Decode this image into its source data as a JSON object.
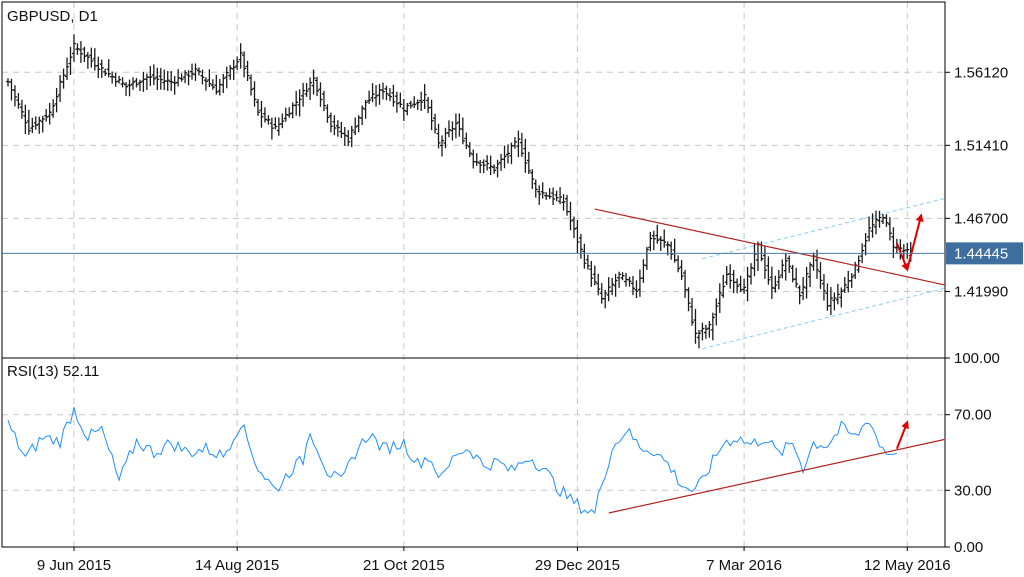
{
  "chart_data": [
    {
      "type": "ohlc",
      "title": "GBPUSD, D1",
      "price_ticks": [
        1.5612,
        1.5141,
        1.467,
        1.4199
      ],
      "price_tick_labels": [
        "1.56120",
        "1.51410",
        "1.46700",
        "1.41990"
      ],
      "ylim": [
        1.377,
        1.6065
      ],
      "current_price": 1.44445,
      "current_price_label": "1.44445",
      "date_labels": [
        "9 Jun 2015",
        "14 Aug 2015",
        "21 Oct 2015",
        "29 Dec 2015",
        "7 Mar 2016",
        "12 May 2016"
      ],
      "date_label_bars": [
        19,
        66,
        114,
        164,
        212,
        259
      ],
      "bars_total": 270,
      "anchors": [
        [
          0,
          1.555
        ],
        [
          6,
          1.525
        ],
        [
          12,
          1.535
        ],
        [
          19,
          1.578
        ],
        [
          26,
          1.565
        ],
        [
          34,
          1.552
        ],
        [
          40,
          1.558
        ],
        [
          47,
          1.555
        ],
        [
          54,
          1.562
        ],
        [
          60,
          1.55
        ],
        [
          67,
          1.572
        ],
        [
          72,
          1.535
        ],
        [
          77,
          1.525
        ],
        [
          84,
          1.545
        ],
        [
          88,
          1.557
        ],
        [
          93,
          1.528
        ],
        [
          98,
          1.518
        ],
        [
          103,
          1.542
        ],
        [
          108,
          1.55
        ],
        [
          114,
          1.538
        ],
        [
          120,
          1.545
        ],
        [
          124,
          1.515
        ],
        [
          129,
          1.528
        ],
        [
          134,
          1.505
        ],
        [
          140,
          1.499
        ],
        [
          147,
          1.517
        ],
        [
          152,
          1.485
        ],
        [
          160,
          1.478
        ],
        [
          166,
          1.44
        ],
        [
          171,
          1.415
        ],
        [
          176,
          1.43
        ],
        [
          181,
          1.421
        ],
        [
          185,
          1.455
        ],
        [
          190,
          1.45
        ],
        [
          194,
          1.43
        ],
        [
          198,
          1.392
        ],
        [
          202,
          1.397
        ],
        [
          207,
          1.431
        ],
        [
          212,
          1.421
        ],
        [
          216,
          1.449
        ],
        [
          220,
          1.421
        ],
        [
          224,
          1.44
        ],
        [
          228,
          1.418
        ],
        [
          232,
          1.441
        ],
        [
          236,
          1.412
        ],
        [
          240,
          1.42
        ],
        [
          244,
          1.435
        ],
        [
          248,
          1.46
        ],
        [
          252,
          1.469
        ],
        [
          255,
          1.45
        ],
        [
          259,
          1.445
        ],
        [
          260,
          1.44445
        ]
      ],
      "annotations": [
        {
          "type": "trendline",
          "color": "#b22222",
          "from": [
            169,
            1.473
          ],
          "to": [
            270,
            1.424
          ]
        },
        {
          "type": "channel_line",
          "color": "#87cefa",
          "from": [
            200,
            1.383
          ],
          "to": [
            270,
            1.422
          ]
        },
        {
          "type": "channel_line",
          "color": "#87cefa",
          "from": [
            200,
            1.441
          ],
          "to": [
            270,
            1.48
          ]
        },
        {
          "type": "arrow",
          "color": "#e00000",
          "from": [
            256,
            1.451
          ],
          "to": [
            259,
            1.434
          ]
        },
        {
          "type": "arrow",
          "color": "#e00000",
          "from": [
            259,
            1.434
          ],
          "to": [
            263,
            1.469
          ]
        }
      ]
    },
    {
      "type": "line",
      "title": "RSI(13) 52.11",
      "ylim": [
        0,
        100
      ],
      "y_ticks": [
        100,
        70,
        30,
        0
      ],
      "y_tick_labels": [
        "100.00",
        "70.00",
        "30.00",
        "0.00"
      ],
      "series": [
        {
          "color": "#1e90ff",
          "anchors": [
            [
              0,
              65
            ],
            [
              5,
              47
            ],
            [
              10,
              58
            ],
            [
              15,
              56
            ],
            [
              19,
              73
            ],
            [
              23,
              58
            ],
            [
              27,
              62
            ],
            [
              32,
              35
            ],
            [
              37,
              56
            ],
            [
              42,
              50
            ],
            [
              47,
              55
            ],
            [
              52,
              50
            ],
            [
              57,
              52
            ],
            [
              62,
              48
            ],
            [
              67,
              66
            ],
            [
              72,
              42
            ],
            [
              77,
              30
            ],
            [
              82,
              42
            ],
            [
              85,
              46
            ],
            [
              87,
              62
            ],
            [
              92,
              40
            ],
            [
              96,
              34
            ],
            [
              100,
              50
            ],
            [
              104,
              60
            ],
            [
              108,
              52
            ],
            [
              114,
              55
            ],
            [
              118,
              44
            ],
            [
              121,
              48
            ],
            [
              125,
              36
            ],
            [
              129,
              50
            ],
            [
              133,
              52
            ],
            [
              137,
              43
            ],
            [
              141,
              45
            ],
            [
              145,
              40
            ],
            [
              150,
              48
            ],
            [
              154,
              42
            ],
            [
              158,
              32
            ],
            [
              162,
              25
            ],
            [
              166,
              20
            ],
            [
              169,
              18
            ],
            [
              171,
              34
            ],
            [
              174,
              52
            ],
            [
              178,
              62
            ],
            [
              182,
              53
            ],
            [
              186,
              51
            ],
            [
              190,
              44
            ],
            [
              194,
              33
            ],
            [
              198,
              29
            ],
            [
              202,
              42
            ],
            [
              206,
              55
            ],
            [
              210,
              58
            ],
            [
              214,
              54
            ],
            [
              218,
              58
            ],
            [
              222,
              49
            ],
            [
              226,
              55
            ],
            [
              229,
              42
            ],
            [
              232,
              55
            ],
            [
              236,
              54
            ],
            [
              240,
              63
            ],
            [
              244,
              58
            ],
            [
              248,
              68
            ],
            [
              251,
              54
            ],
            [
              254,
              49
            ],
            [
              256,
              52.11
            ]
          ]
        }
      ],
      "annotations": [
        {
          "type": "trendline",
          "color": "#b22222",
          "from": [
            173,
            18
          ],
          "to": [
            270,
            57
          ]
        },
        {
          "type": "arrow",
          "color": "#e00000",
          "from": [
            256,
            52
          ],
          "to": [
            259,
            66
          ]
        }
      ]
    }
  ],
  "colors": {
    "background": "#ffffff",
    "bars": "#1a1a1a",
    "grid": "#c8c8c8",
    "current_price_line": "#4a7aa8",
    "current_price_label_bg": "#3e6e9e",
    "current_price_label_text": "#ffffff",
    "rsi": "#1e90ff",
    "trendline": "#b22222",
    "channel": "#87cefa",
    "arrow": "#e00000"
  },
  "grid": true
}
